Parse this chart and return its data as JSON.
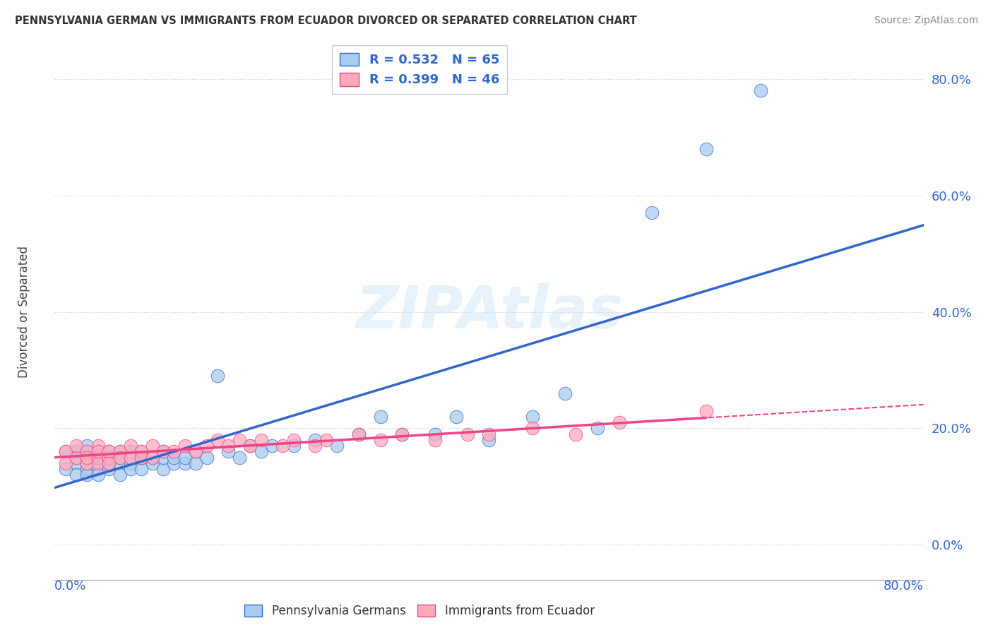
{
  "title": "PENNSYLVANIA GERMAN VS IMMIGRANTS FROM ECUADOR DIVORCED OR SEPARATED CORRELATION CHART",
  "source": "Source: ZipAtlas.com",
  "ylabel": "Divorced or Separated",
  "legend_label1": "Pennsylvania Germans",
  "legend_label2": "Immigrants from Ecuador",
  "r1": "0.532",
  "n1": "65",
  "r2": "0.399",
  "n2": "46",
  "xmin": 0.0,
  "xmax": 0.8,
  "ymin": -0.06,
  "ymax": 0.86,
  "yticks": [
    0.0,
    0.2,
    0.4,
    0.6,
    0.8
  ],
  "color_blue": "#aaccee",
  "color_pink": "#ffaabb",
  "line_color_blue": "#3366cc",
  "line_color_pink": "#ee4488",
  "blue_scatter_x": [
    0.01,
    0.01,
    0.02,
    0.02,
    0.02,
    0.02,
    0.03,
    0.03,
    0.03,
    0.03,
    0.03,
    0.03,
    0.04,
    0.04,
    0.04,
    0.04,
    0.04,
    0.05,
    0.05,
    0.05,
    0.05,
    0.06,
    0.06,
    0.06,
    0.06,
    0.07,
    0.07,
    0.07,
    0.07,
    0.08,
    0.08,
    0.08,
    0.09,
    0.09,
    0.1,
    0.1,
    0.1,
    0.11,
    0.11,
    0.12,
    0.12,
    0.13,
    0.13,
    0.14,
    0.15,
    0.16,
    0.17,
    0.18,
    0.19,
    0.2,
    0.22,
    0.24,
    0.26,
    0.28,
    0.3,
    0.32,
    0.35,
    0.37,
    0.4,
    0.44,
    0.47,
    0.5,
    0.55,
    0.6,
    0.65
  ],
  "blue_scatter_y": [
    0.16,
    0.13,
    0.15,
    0.14,
    0.16,
    0.12,
    0.15,
    0.13,
    0.16,
    0.17,
    0.12,
    0.14,
    0.14,
    0.16,
    0.13,
    0.15,
    0.12,
    0.15,
    0.13,
    0.16,
    0.14,
    0.14,
    0.16,
    0.12,
    0.15,
    0.14,
    0.16,
    0.13,
    0.15,
    0.13,
    0.15,
    0.16,
    0.14,
    0.15,
    0.13,
    0.15,
    0.16,
    0.14,
    0.15,
    0.14,
    0.15,
    0.14,
    0.16,
    0.15,
    0.29,
    0.16,
    0.15,
    0.17,
    0.16,
    0.17,
    0.17,
    0.18,
    0.17,
    0.19,
    0.22,
    0.19,
    0.19,
    0.22,
    0.18,
    0.22,
    0.26,
    0.2,
    0.57,
    0.68,
    0.78
  ],
  "pink_scatter_x": [
    0.01,
    0.01,
    0.02,
    0.02,
    0.03,
    0.03,
    0.03,
    0.04,
    0.04,
    0.04,
    0.04,
    0.05,
    0.05,
    0.05,
    0.06,
    0.06,
    0.07,
    0.07,
    0.08,
    0.08,
    0.09,
    0.09,
    0.1,
    0.11,
    0.12,
    0.13,
    0.14,
    0.15,
    0.16,
    0.17,
    0.18,
    0.19,
    0.21,
    0.22,
    0.24,
    0.25,
    0.28,
    0.3,
    0.32,
    0.35,
    0.38,
    0.4,
    0.44,
    0.48,
    0.52,
    0.6
  ],
  "pink_scatter_y": [
    0.16,
    0.14,
    0.15,
    0.17,
    0.14,
    0.16,
    0.15,
    0.15,
    0.17,
    0.14,
    0.16,
    0.15,
    0.16,
    0.14,
    0.16,
    0.15,
    0.15,
    0.17,
    0.16,
    0.15,
    0.17,
    0.15,
    0.16,
    0.16,
    0.17,
    0.16,
    0.17,
    0.18,
    0.17,
    0.18,
    0.17,
    0.18,
    0.17,
    0.18,
    0.17,
    0.18,
    0.19,
    0.18,
    0.19,
    0.18,
    0.19,
    0.19,
    0.2,
    0.19,
    0.21,
    0.23
  ]
}
